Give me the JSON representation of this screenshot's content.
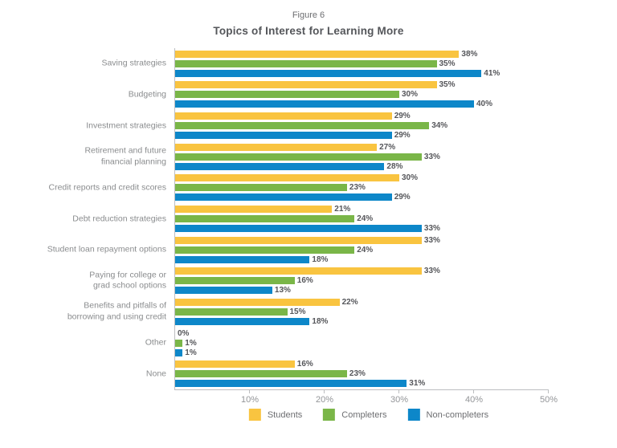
{
  "header": {
    "figure_label": "Figure 6",
    "title": "Topics of Interest for Learning More"
  },
  "chart_data": {
    "type": "bar",
    "orientation": "horizontal",
    "title": "Topics of Interest for Learning More",
    "xlabel": "",
    "ylabel": "",
    "xlim": [
      0,
      50
    ],
    "x_tick_labels": [
      "10%",
      "20%",
      "30%",
      "40%",
      "50%"
    ],
    "value_suffix": "%",
    "grid": false,
    "legend_position": "bottom",
    "categories": [
      "Saving strategies",
      "Budgeting",
      "Investment strategies",
      "Retirement and future\nfinancial planning",
      "Credit reports and credit scores",
      "Debt reduction strategies",
      "Student loan repayment options",
      "Paying for college or\ngrad school options",
      "Benefits and pitfalls of\nborrowing and using credit",
      "Other",
      "None"
    ],
    "series": [
      {
        "name": "Students",
        "color": "#F9C440",
        "values": [
          38,
          35,
          29,
          27,
          30,
          21,
          33,
          33,
          22,
          0,
          16
        ]
      },
      {
        "name": "Completers",
        "color": "#7AB648",
        "values": [
          35,
          30,
          34,
          33,
          23,
          24,
          24,
          16,
          15,
          1,
          23
        ]
      },
      {
        "name": "Non-completers",
        "color": "#0D87C9",
        "values": [
          41,
          40,
          29,
          28,
          29,
          33,
          18,
          13,
          18,
          1,
          31
        ]
      }
    ]
  }
}
